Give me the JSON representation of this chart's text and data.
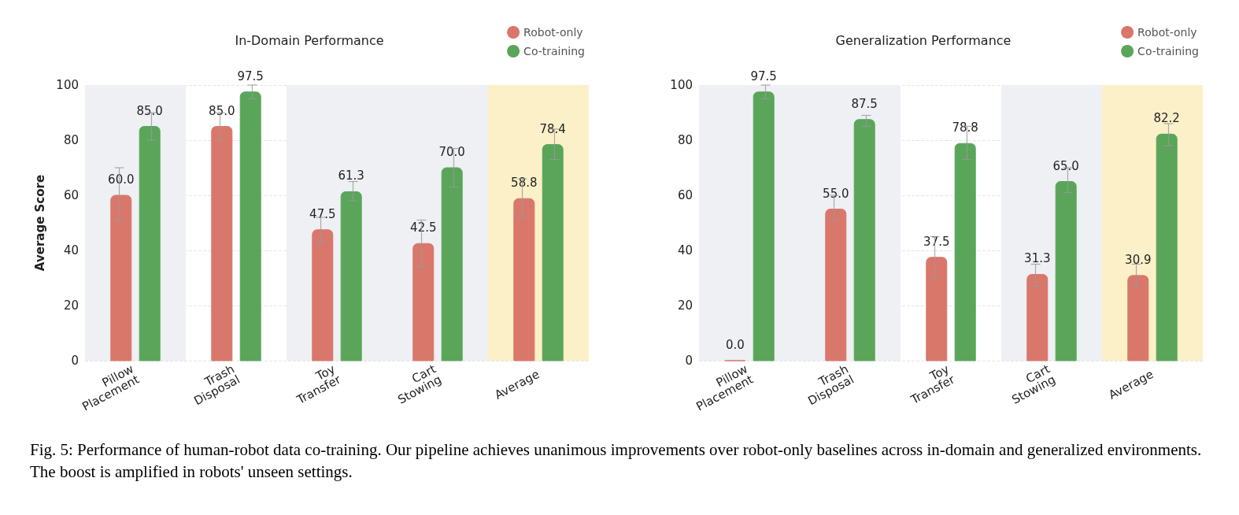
{
  "chart_data": [
    {
      "type": "bar",
      "title": "In-Domain Performance",
      "ylabel": "Average Score",
      "categories": [
        "Pillow Placement",
        "Trash Disposal",
        "Toy Transfer",
        "Cart Stowing",
        "Average"
      ],
      "ylim": [
        0,
        100
      ],
      "yticks": [
        0,
        20,
        40,
        60,
        80,
        100
      ],
      "grid": "y",
      "legend": "top right",
      "series": [
        {
          "name": "Robot-only",
          "color": "#d9776b",
          "values": [
            60.0,
            85.0,
            47.5,
            42.5,
            58.8
          ],
          "value_labels": [
            "60.0",
            "85.0",
            "47.5",
            "42.5",
            "58.8"
          ],
          "errors": [
            [
              51,
              70
            ],
            [
              80,
              90
            ],
            [
              43,
              52
            ],
            [
              34,
              51
            ],
            [
              52,
              66
            ]
          ]
        },
        {
          "name": "Co-training",
          "color": "#5aa55a",
          "values": [
            85.0,
            97.5,
            61.3,
            70.0,
            78.4
          ],
          "value_labels": [
            "85.0",
            "97.5",
            "61.3",
            "70.0",
            "78.4"
          ],
          "errors": [
            [
              80,
              90
            ],
            [
              95,
              100
            ],
            [
              58,
              65
            ],
            [
              63,
              77
            ],
            [
              73,
              84
            ]
          ]
        }
      ],
      "bands": [
        {
          "axis": "x",
          "from": "Pillow Placement",
          "to": "Pillow Placement",
          "color": "#eef0f4"
        },
        {
          "axis": "x",
          "from": "Toy Transfer",
          "to": "Toy Transfer",
          "color": "#eef0f4"
        },
        {
          "axis": "x",
          "from": "Cart Stowing",
          "to": "Cart Stowing",
          "color": "#eef0f4"
        },
        {
          "axis": "x",
          "from": "Average",
          "to": "Average",
          "color": "#fcf0c8"
        }
      ],
      "annotations": [
        "Fig. 5: Performance of human-robot data co-training. Our pipeline achieves unanimous improvements over robot-only baselines across in-domain and generalized environments. The boost is amplified in robots' unseen settings."
      ]
    },
    {
      "type": "bar",
      "title": "Generalization Performance",
      "categories": [
        "Pillow Placement",
        "Trash Disposal",
        "Toy Transfer",
        "Cart Stowing",
        "Average"
      ],
      "ylim": [
        0,
        100
      ],
      "yticks": [
        0,
        20,
        40,
        60,
        80,
        100
      ],
      "grid": "y",
      "legend": "top right",
      "series": [
        {
          "name": "Robot-only",
          "color": "#d9776b",
          "values": [
            0.0,
            55.0,
            37.5,
            31.3,
            30.9
          ],
          "value_labels": [
            "0.0",
            "55.0",
            "37.5",
            "31.3",
            "30.9"
          ],
          "errors": [
            null,
            [
              51,
              60
            ],
            [
              30,
              45
            ],
            [
              27,
              35
            ],
            [
              27,
              35
            ]
          ]
        },
        {
          "name": "Co-training",
          "color": "#5aa55a",
          "values": [
            97.5,
            87.5,
            78.8,
            65.0,
            82.2
          ],
          "value_labels": [
            "97.5",
            "87.5",
            "78.8",
            "65.0",
            "82.2"
          ],
          "errors": [
            [
              95,
              100
            ],
            [
              85,
              89
            ],
            [
              73,
              85
            ],
            [
              61,
              70
            ],
            [
              78,
              86
            ]
          ]
        }
      ],
      "bands": [
        {
          "axis": "x",
          "from": "Pillow Placement",
          "to": "Pillow Placement",
          "color": "#eef0f4"
        },
        {
          "axis": "x",
          "from": "Trash Disposal",
          "to": "Trash Disposal",
          "color": "#eef0f4"
        },
        {
          "axis": "x",
          "from": "Cart Stowing",
          "to": "Cart Stowing",
          "color": "#eef0f4"
        },
        {
          "axis": "x",
          "from": "Average",
          "to": "Average",
          "color": "#fcf0c8"
        }
      ]
    }
  ]
}
